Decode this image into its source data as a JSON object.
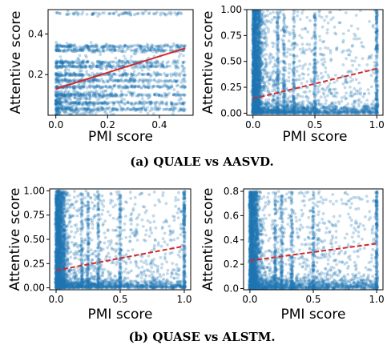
{
  "captions": [
    "(a) QUALE vs AASVD.",
    "(b) QUASE vs ALSTM."
  ],
  "colors": {
    "points": "#1f77b4",
    "fit": "#d62728"
  },
  "chart_data": [
    {
      "type": "scatter",
      "panel": "a-left",
      "xlabel": "PMI score",
      "ylabel": "Attentive score",
      "xlim": [
        -0.03,
        0.53
      ],
      "ylim": [
        0.0,
        0.52
      ],
      "xticks": [
        0.0,
        0.2,
        0.4
      ],
      "xtick_labels": [
        "0.0",
        "0.2",
        "0.4"
      ],
      "yticks": [
        0.2,
        0.4
      ],
      "ytick_labels": [
        "0.2",
        "0.4"
      ],
      "point_bands_y": [
        0.03,
        0.06,
        0.1,
        0.14,
        0.17,
        0.2,
        0.24,
        0.26,
        0.32,
        0.34,
        0.5
      ],
      "fit_line": {
        "x": [
          0.0,
          0.5
        ],
        "y": [
          0.13,
          0.33
        ],
        "style": "solid"
      }
    },
    {
      "type": "scatter",
      "panel": "a-right",
      "xlabel": "PMI score",
      "ylabel": "Attentive score",
      "xlim": [
        -0.05,
        1.05
      ],
      "ylim": [
        -0.02,
        1.0
      ],
      "xticks": [
        0.0,
        0.5,
        1.0
      ],
      "xtick_labels": [
        "0.0",
        "0.5",
        "1.0"
      ],
      "yticks": [
        0.0,
        0.25,
        0.5,
        0.75,
        1.0
      ],
      "ytick_labels": [
        "0.00",
        "0.25",
        "0.50",
        "0.75",
        "1.00"
      ],
      "vertical_bands_x": [
        0.0,
        0.02,
        0.05,
        0.2,
        0.25,
        0.33,
        0.5,
        1.0
      ],
      "fit_line": {
        "x": [
          0.0,
          1.0
        ],
        "y": [
          0.14,
          0.43
        ],
        "style": "dashed"
      }
    },
    {
      "type": "scatter",
      "panel": "b-left",
      "xlabel": "PMI score",
      "ylabel": "Attentive score",
      "xlim": [
        -0.05,
        1.05
      ],
      "ylim": [
        -0.02,
        1.02
      ],
      "xticks": [
        0.0,
        0.5,
        1.0
      ],
      "xtick_labels": [
        "0.0",
        "0.5",
        "1.0"
      ],
      "yticks": [
        0.0,
        0.25,
        0.5,
        0.75,
        1.0
      ],
      "ytick_labels": [
        "0.00",
        "0.25",
        "0.50",
        "0.75",
        "1.00"
      ],
      "vertical_bands_x": [
        0.0,
        0.03,
        0.06,
        0.2,
        0.25,
        0.33,
        0.5,
        1.0
      ],
      "fit_line": {
        "x": [
          0.0,
          1.0
        ],
        "y": [
          0.18,
          0.43
        ],
        "style": "dashed"
      }
    },
    {
      "type": "scatter",
      "panel": "b-right",
      "xlabel": "PMI score",
      "ylabel": "Attentive score",
      "xlim": [
        -0.05,
        1.05
      ],
      "ylim": [
        -0.01,
        0.82
      ],
      "xticks": [
        0.0,
        0.5,
        1.0
      ],
      "xtick_labels": [
        "0.0",
        "0.5",
        "1.0"
      ],
      "yticks": [
        0.0,
        0.2,
        0.4,
        0.6,
        0.8
      ],
      "ytick_labels": [
        "0.0",
        "0.2",
        "0.4",
        "0.6",
        "0.8"
      ],
      "vertical_bands_x": [
        0.0,
        0.02,
        0.05,
        0.2,
        0.25,
        0.33,
        0.5,
        1.0
      ],
      "fit_line": {
        "x": [
          0.0,
          1.0
        ],
        "y": [
          0.23,
          0.37
        ],
        "style": "dashed"
      }
    }
  ]
}
